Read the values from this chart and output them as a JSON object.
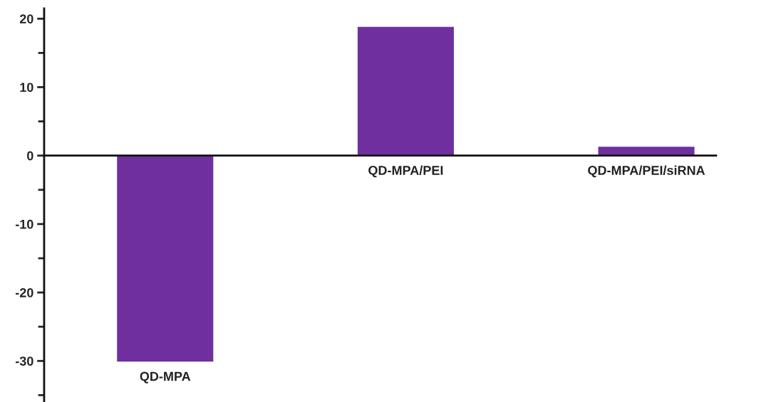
{
  "chart_data": {
    "type": "bar",
    "categories": [
      "QD-MPA",
      "QD-MPA/PEI",
      "QD-MPA/PEI/siRNA"
    ],
    "values": [
      -30.1,
      18.8,
      1.3
    ],
    "color": "#6f2f9f",
    "ylim": [
      -36,
      21.5
    ],
    "yticks": [
      -30,
      -20,
      -10,
      0,
      10,
      20
    ],
    "grid": false
  }
}
